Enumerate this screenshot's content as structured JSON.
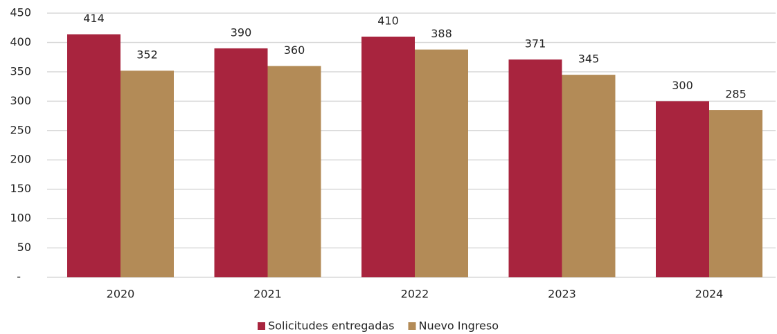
{
  "chart_data": {
    "type": "bar",
    "categories": [
      "2020",
      "2021",
      "2022",
      "2023",
      "2024"
    ],
    "series": [
      {
        "name": "Solicitudes entregadas",
        "color": "#a8243e",
        "values": [
          414,
          390,
          410,
          371,
          300
        ]
      },
      {
        "name": "Nuevo Ingreso",
        "color": "#b38b57",
        "values": [
          352,
          360,
          388,
          345,
          285
        ]
      }
    ],
    "ylim": [
      0,
      450
    ],
    "yticks": [
      {
        "value": 0,
        "label": "-"
      },
      50,
      100,
      150,
      200,
      250,
      300,
      350,
      400,
      450
    ],
    "grid": true,
    "legend": "bottom"
  }
}
